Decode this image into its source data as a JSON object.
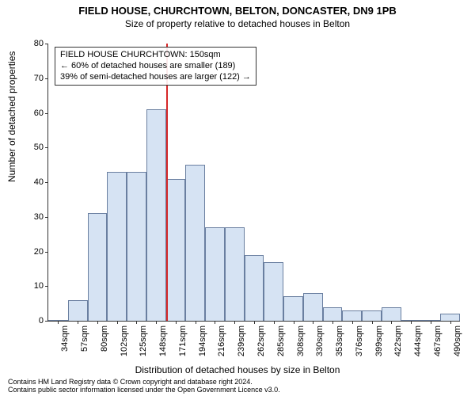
{
  "title": "FIELD HOUSE, CHURCHTOWN, BELTON, DONCASTER, DN9 1PB",
  "subtitle": "Size of property relative to detached houses in Belton",
  "axis": {
    "ylabel": "Number of detached properties",
    "xlabel": "Distribution of detached houses by size in Belton"
  },
  "footer": {
    "line1": "Contains HM Land Registry data © Crown copyright and database right 2024.",
    "line2": "Contains public sector information licensed under the Open Government Licence v3.0."
  },
  "annot": {
    "line1": "FIELD HOUSE CHURCHTOWN: 150sqm",
    "line2": "← 60% of detached houses are smaller (189)",
    "line3": "39% of semi-detached houses are larger (122) →"
  },
  "chart": {
    "type": "histogram",
    "ylim": [
      0,
      80
    ],
    "ytick_step": 10,
    "xticks": [
      "34sqm",
      "57sqm",
      "80sqm",
      "102sqm",
      "125sqm",
      "148sqm",
      "171sqm",
      "194sqm",
      "216sqm",
      "239sqm",
      "262sqm",
      "285sqm",
      "308sqm",
      "330sqm",
      "353sqm",
      "376sqm",
      "399sqm",
      "422sqm",
      "444sqm",
      "467sqm",
      "490sqm"
    ],
    "values": [
      0,
      6,
      31,
      43,
      43,
      61,
      41,
      45,
      27,
      27,
      19,
      17,
      7,
      8,
      4,
      3,
      3,
      4,
      0,
      0,
      2
    ],
    "bar_fill": "#d6e3f3",
    "bar_stroke": "#6a7fa0",
    "ref_line_index": 5,
    "ref_line_color": "#d62728",
    "background": "#ffffff",
    "title_fontsize": 13,
    "subtitle_fontsize": 12,
    "label_fontsize": 12,
    "tick_fontsize": 11,
    "annot_fontsize": 11,
    "footer_fontsize": 9
  }
}
